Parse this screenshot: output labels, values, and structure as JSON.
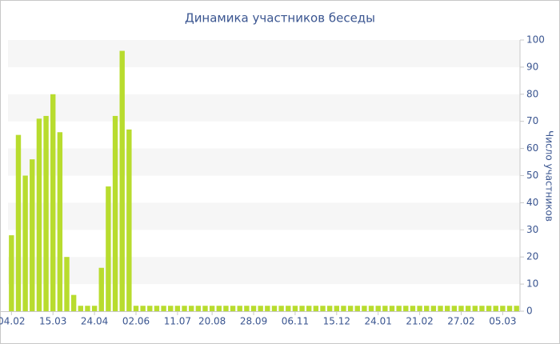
{
  "chart_data": {
    "type": "bar",
    "title": "Динамика участников беседы",
    "y_label": "Число участников",
    "categories": [
      "04.02",
      null,
      null,
      null,
      null,
      null,
      "15.03",
      null,
      null,
      null,
      null,
      null,
      "24.04",
      null,
      null,
      null,
      null,
      null,
      "02.06",
      null,
      null,
      null,
      null,
      null,
      "11.07",
      null,
      null,
      null,
      null,
      "20.08",
      null,
      null,
      null,
      null,
      null,
      "28.09",
      null,
      null,
      null,
      null,
      null,
      "06.11",
      null,
      null,
      null,
      null,
      null,
      "15.12",
      null,
      null,
      null,
      null,
      null,
      "24.01",
      null,
      null,
      null,
      null,
      null,
      "21.02",
      null,
      null,
      null,
      null,
      null,
      "27.02",
      null,
      null,
      null,
      null,
      null,
      "05.03",
      null,
      null
    ],
    "values": [
      28,
      65,
      50,
      56,
      71,
      72,
      80,
      66,
      20,
      6,
      2,
      2,
      2,
      16,
      46,
      72,
      96,
      67,
      2,
      2,
      2,
      2,
      2,
      2,
      2,
      2,
      2,
      2,
      2,
      2,
      2,
      2,
      2,
      2,
      2,
      2,
      2,
      2,
      2,
      2,
      2,
      2,
      2,
      2,
      2,
      2,
      2,
      2,
      2,
      2,
      2,
      2,
      2,
      2,
      2,
      2,
      2,
      2,
      2,
      2,
      2,
      2,
      2,
      2,
      2,
      2,
      2,
      2,
      2,
      2,
      2,
      2,
      2,
      2
    ],
    "color": "#b8dc2e",
    "ylim": [
      0,
      100
    ],
    "yticks": [
      0,
      10,
      20,
      30,
      40,
      50,
      60,
      70,
      80,
      90,
      100
    ],
    "y_axis_side": "right",
    "grid": "bands"
  }
}
